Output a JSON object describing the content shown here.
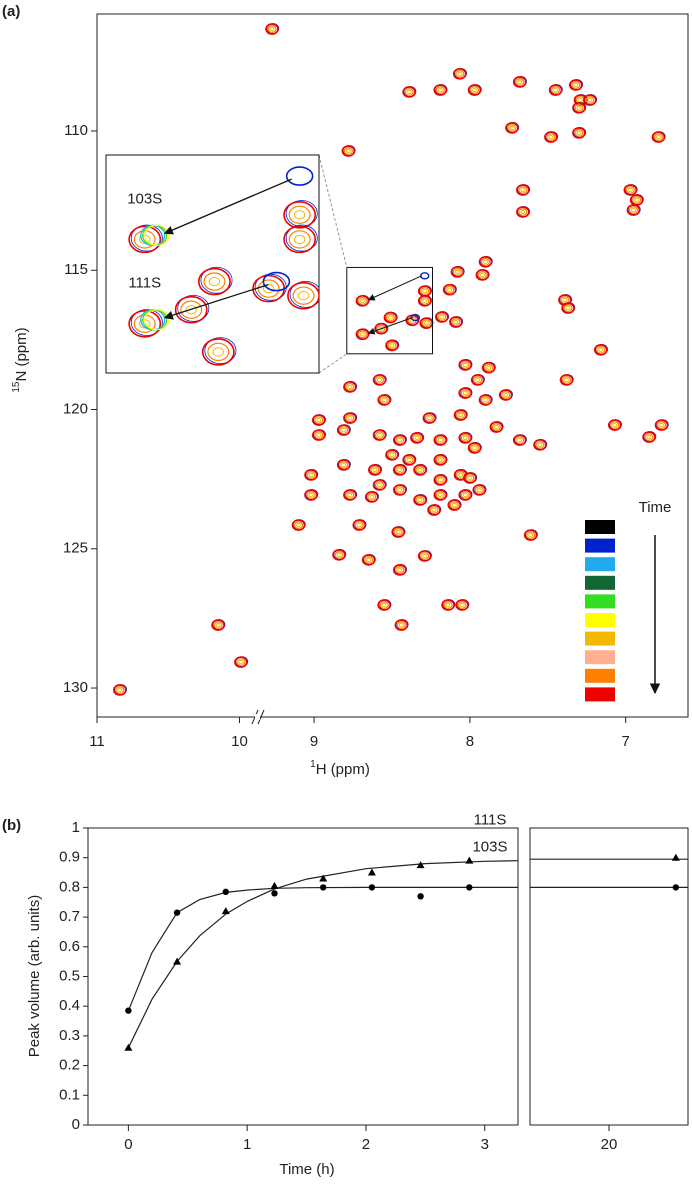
{
  "chart_data": [
    {
      "type": "nmr",
      "panel_label": "(a)",
      "xlabel_sup": "1",
      "xlabel": "H (ppm)",
      "ylabel_sup": "15",
      "ylabel": "N (ppm)",
      "x_segments": [
        {
          "xlim": [
            11,
            9.87
          ],
          "xticks": [
            11,
            10
          ]
        },
        {
          "xlim": [
            9.36,
            6.6
          ],
          "xticks": [
            9,
            8,
            7
          ]
        }
      ],
      "ylim": [
        131.04,
        105.8
      ],
      "yticks": [
        110,
        115,
        120,
        125,
        130
      ],
      "legend_title": "Time",
      "colors": [
        "#000000",
        "#0022cc",
        "#22aaee",
        "#116633",
        "#33dd22",
        "#ffff00",
        "#f5b800",
        "#ffb090",
        "#ff7f00",
        "#ee0000"
      ],
      "peaks": {
        "x": [
          9.27,
          8.065,
          8.19,
          8.39,
          7.97,
          7.68,
          7.32,
          7.45,
          7.29,
          7.3,
          7.23,
          7.73,
          7.48,
          7.3,
          6.79,
          8.78,
          7.66,
          7.66,
          6.95,
          6.93,
          6.97,
          8.08,
          7.9,
          7.92,
          8.13,
          8.18,
          8.09,
          7.39,
          7.37,
          7.16,
          8.03,
          7.88,
          7.38,
          8.03,
          7.95,
          7.9,
          8.77,
          8.58,
          7.77,
          8.97,
          8.77,
          8.06,
          7.83,
          8.55,
          8.26,
          7.68,
          7.55,
          7.07,
          6.77,
          6.85,
          8.97,
          8.81,
          8.58,
          8.45,
          8.34,
          8.19,
          8.03,
          7.97,
          8.5,
          8.39,
          8.19,
          8.81,
          8.61,
          8.45,
          8.32,
          8.19,
          8.06,
          8.03,
          8.19,
          8.45,
          8.58,
          8.32,
          8.77,
          8.63,
          8.23,
          8.1,
          7.94,
          8.0,
          9.02,
          9.02,
          9.1,
          8.71,
          8.46,
          7.61,
          8.84,
          8.65,
          8.45,
          8.29,
          8.55,
          8.14,
          8.05,
          8.44,
          10.15,
          9.99,
          10.84,
          8.69,
          8.69,
          8.29,
          8.29,
          8.51,
          8.57,
          8.5,
          8.37,
          8.28
        ],
        "y": [
          106.34,
          107.95,
          108.53,
          108.6,
          108.53,
          108.24,
          108.35,
          108.53,
          108.89,
          109.17,
          108.89,
          109.89,
          110.22,
          110.07,
          110.22,
          110.72,
          112.12,
          112.91,
          112.84,
          112.48,
          112.12,
          115.06,
          114.7,
          115.17,
          115.7,
          116.68,
          116.86,
          116.07,
          116.36,
          117.86,
          118.4,
          118.5,
          118.94,
          119.41,
          118.94,
          119.66,
          119.19,
          118.94,
          119.48,
          120.38,
          120.31,
          120.2,
          120.63,
          119.66,
          120.31,
          121.1,
          121.27,
          120.56,
          120.56,
          120.99,
          120.92,
          120.74,
          120.92,
          121.1,
          121.02,
          121.1,
          121.02,
          121.38,
          121.63,
          121.81,
          121.81,
          121.99,
          122.17,
          122.17,
          122.17,
          122.53,
          122.35,
          123.07,
          123.07,
          122.89,
          122.71,
          123.25,
          123.07,
          123.14,
          123.61,
          123.43,
          122.89,
          122.46,
          122.35,
          123.07,
          124.15,
          124.15,
          124.4,
          124.51,
          125.22,
          125.4,
          125.76,
          125.26,
          127.02,
          127.02,
          127.02,
          127.74,
          127.74,
          129.07,
          130.07,
          116.1,
          117.3,
          115.75,
          116.1,
          116.7,
          117.1,
          117.7,
          116.8,
          116.9
        ]
      },
      "inset": {
        "xlim": [
          8.79,
          8.24
        ],
        "ylim": [
          114.9,
          118.0
        ]
      },
      "annotations": [
        {
          "label": "103S",
          "from": [
            8.29,
            115.2
          ],
          "to": [
            8.69,
            116.1
          ]
        },
        {
          "label": "111S",
          "from": [
            8.35,
            116.7
          ],
          "to": [
            8.69,
            117.3
          ]
        }
      ]
    },
    {
      "type": "line",
      "panel_label": "(b)",
      "xlabel": "Time (h)",
      "ylabel": "Peak volume (arb. units)",
      "x_segments": [
        {
          "xlim": [
            -0.34,
            3.28
          ],
          "xticks": [
            0,
            1,
            2,
            3
          ]
        },
        {
          "xlim": [
            19.35,
            20.65
          ],
          "xticks": [
            20
          ]
        }
      ],
      "ylim": [
        0,
        1
      ],
      "yticks": [
        0,
        0.1,
        0.2,
        0.3,
        0.4,
        0.5,
        0.6,
        0.7,
        0.8,
        0.9,
        1
      ],
      "series": [
        {
          "name": "103S",
          "marker": "circle",
          "color": "#000000",
          "x": [
            0,
            0.41,
            0.82,
            1.23,
            1.64,
            2.05,
            2.46,
            2.87,
            20.55
          ],
          "values": [
            0.385,
            0.715,
            0.785,
            0.78,
            0.8,
            0.8,
            0.77,
            0.8,
            0.8
          ]
        },
        {
          "name": "111S",
          "marker": "triangle",
          "color": "#000000",
          "x": [
            0,
            0.41,
            0.82,
            1.23,
            1.64,
            2.05,
            2.46,
            2.87,
            20.55
          ],
          "values": [
            0.26,
            0.55,
            0.72,
            0.805,
            0.83,
            0.85,
            0.875,
            0.89,
            0.9
          ]
        }
      ],
      "fits": [
        {
          "x": [
            0,
            0.2,
            0.41,
            0.6,
            0.82,
            1,
            1.23,
            1.5,
            2,
            2.5,
            3,
            3.28,
            19.35,
            20.65
          ],
          "values": [
            0.385,
            0.581,
            0.715,
            0.759,
            0.783,
            0.791,
            0.797,
            0.799,
            0.8,
            0.8,
            0.8,
            0.8,
            0.8,
            0.8
          ]
        },
        {
          "x": [
            0,
            0.2,
            0.41,
            0.6,
            0.82,
            1,
            1.23,
            1.5,
            2,
            2.5,
            3,
            3.28,
            19.35,
            20.65
          ],
          "values": [
            0.26,
            0.424,
            0.551,
            0.637,
            0.71,
            0.753,
            0.795,
            0.828,
            0.863,
            0.88,
            0.888,
            0.89,
            0.895,
            0.895
          ]
        }
      ]
    }
  ]
}
